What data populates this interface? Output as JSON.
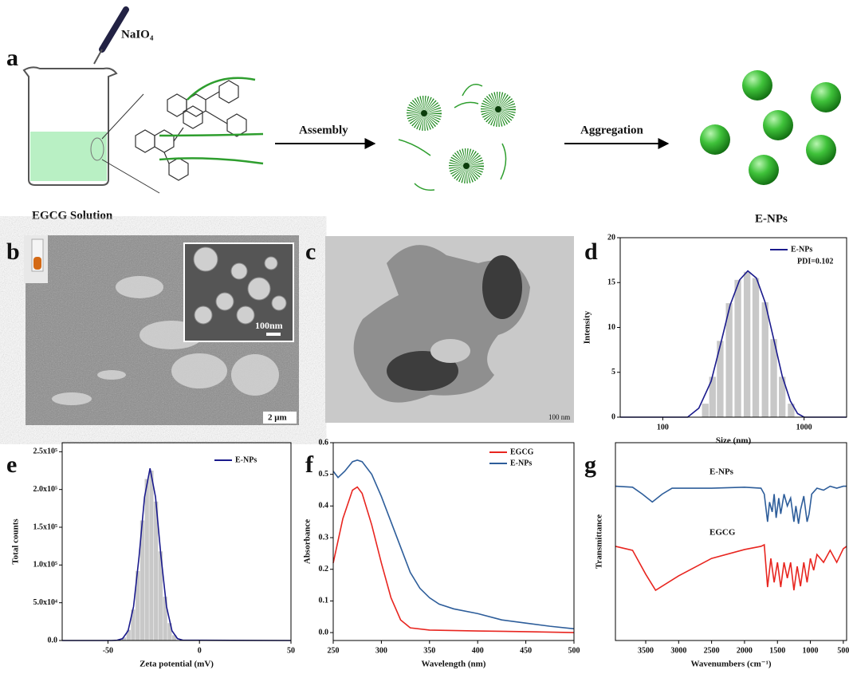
{
  "panel_labels": [
    "a",
    "b",
    "c",
    "d",
    "e",
    "f",
    "g"
  ],
  "scheme": {
    "reagent": "NaIO₄",
    "solution": "EGCG Solution",
    "step1": "Assembly",
    "step2": "Aggregation",
    "product": "E-NPs"
  },
  "micrographs": {
    "sem_inset_scale": "100nm",
    "sem_scale": "2 μm",
    "tem_scale": "100 nm"
  },
  "chart_data": [
    {
      "type": "bar",
      "xlabel": "Size (nm)",
      "ylabel": "Intensity",
      "xscale": "log",
      "xlim": [
        50,
        2000
      ],
      "xticks": [
        100,
        1000
      ],
      "ylim": [
        0,
        20
      ],
      "yticks": [
        0,
        5,
        10,
        15,
        20
      ],
      "legend": "upper right",
      "annotations": [
        "PDI=0.102"
      ],
      "bars": {
        "color": "#c8c8c8",
        "x": [
          200,
          225,
          255,
          295,
          340,
          395,
          455,
          530,
          610,
          700,
          810
        ],
        "values": [
          1.5,
          4.5,
          8.5,
          12.7,
          15.3,
          16.2,
          15.5,
          12.8,
          8.7,
          4.5,
          1.5
        ]
      },
      "series": [
        {
          "name": "E-NPs",
          "color": "#1a1a8c",
          "x": [
            50,
            150,
            180,
            220,
            260,
            300,
            350,
            400,
            460,
            530,
            610,
            700,
            800,
            900,
            1000,
            2000
          ],
          "values": [
            0,
            0,
            1,
            4,
            8.5,
            12.5,
            15.3,
            16.3,
            15.5,
            12.8,
            8.7,
            4.6,
            1.8,
            0.4,
            0,
            0
          ]
        }
      ]
    },
    {
      "type": "bar",
      "xlabel": "Zeta potential  (mV)",
      "ylabel": "Total counts",
      "xlim": [
        -75,
        50
      ],
      "xticks": [
        -50,
        0,
        50
      ],
      "ylim": [
        0,
        262000
      ],
      "yticks": [
        {
          "value": 0,
          "label": "0.0"
        },
        {
          "value": 50000,
          "label": "5.0x10⁴"
        },
        {
          "value": 100000,
          "label": "1.0x10⁵"
        },
        {
          "value": 150000,
          "label": "1.5x10⁵"
        },
        {
          "value": 200000,
          "label": "2.0x10⁵"
        },
        {
          "value": 250000,
          "label": "2.5x10⁵"
        }
      ],
      "legend": "upper right",
      "bars": {
        "color": "#c8c8c8",
        "x": [
          -43.75,
          -41.25,
          -38.75,
          -36.25,
          -33.75,
          -31.25,
          -28.75,
          -26.25,
          -23.75,
          -21.25,
          -18.75,
          -16.25,
          -13.75
        ],
        "values": [
          1000,
          4000,
          14000,
          41000,
          92000,
          159000,
          214000,
          225000,
          184000,
          118000,
          58000,
          23000,
          7000
        ]
      },
      "series": [
        {
          "name": "E-NPs",
          "color": "#1a1a8c",
          "x": [
            -75,
            -48,
            -45,
            -42,
            -39,
            -36,
            -33,
            -30,
            -27,
            -24,
            -21,
            -18,
            -15,
            -12,
            -9,
            50
          ],
          "values": [
            0,
            0,
            350,
            2500,
            12800,
            45000,
            111000,
            190000,
            228000,
            190000,
            111000,
            45000,
            12800,
            2500,
            350,
            0
          ]
        }
      ]
    },
    {
      "type": "line",
      "xlabel": "Wavelength (nm)",
      "ylabel": "Absorbance",
      "xlim": [
        250,
        500
      ],
      "xticks": [
        250,
        300,
        350,
        400,
        450,
        500
      ],
      "ylim": [
        -0.025,
        0.6
      ],
      "yticks": [
        {
          "value": 0,
          "label": "0.0"
        },
        0.1,
        0.2,
        0.3,
        0.4,
        0.5,
        0.6
      ],
      "legend": "upper right",
      "series": [
        {
          "name": "EGCG",
          "color": "#e8251f",
          "x": [
            250,
            260,
            270,
            275,
            280,
            290,
            300,
            310,
            320,
            330,
            350,
            400,
            450,
            500
          ],
          "values": [
            0.22,
            0.36,
            0.45,
            0.46,
            0.44,
            0.34,
            0.22,
            0.11,
            0.04,
            0.015,
            0.008,
            0.005,
            0.003,
            0.0
          ]
        },
        {
          "name": "E-NPs",
          "color": "#2d5d9a",
          "x": [
            250,
            255,
            262,
            270,
            275,
            280,
            290,
            300,
            310,
            320,
            330,
            340,
            350,
            360,
            375,
            400,
            425,
            450,
            475,
            500
          ],
          "values": [
            0.51,
            0.49,
            0.51,
            0.54,
            0.545,
            0.54,
            0.5,
            0.43,
            0.35,
            0.27,
            0.19,
            0.14,
            0.11,
            0.09,
            0.075,
            0.06,
            0.04,
            0.03,
            0.02,
            0.012
          ]
        }
      ]
    },
    {
      "type": "line",
      "xlabel": "Wavenumbers (cm⁻¹)",
      "ylabel": "Transmittance",
      "xlim": [
        3960,
        450
      ],
      "xticks": [
        3500,
        3000,
        2500,
        2000,
        1500,
        1000,
        500
      ],
      "ylim": [
        0,
        100
      ],
      "series": [
        {
          "name": "E-NPs",
          "color": "#2d5d9a",
          "x": [
            3960,
            3700,
            3550,
            3400,
            3250,
            3100,
            2500,
            2000,
            1750,
            1700,
            1650,
            1620,
            1580,
            1550,
            1520,
            1480,
            1450,
            1400,
            1350,
            1300,
            1250,
            1220,
            1180,
            1150,
            1100,
            1050,
            1020,
            980,
            900,
            800,
            700,
            600,
            500,
            450
          ],
          "values": [
            78,
            77.5,
            74,
            70,
            74,
            77,
            77,
            77.5,
            77,
            74,
            60,
            70,
            65,
            74,
            62,
            72,
            64,
            74,
            68,
            72,
            60,
            68,
            59,
            66,
            73,
            60,
            64,
            74,
            77,
            76,
            78,
            77,
            78,
            78
          ]
        },
        {
          "name": "EGCG",
          "color": "#e8251f",
          "x": [
            3960,
            3700,
            3500,
            3350,
            3000,
            2500,
            2000,
            1750,
            1700,
            1650,
            1600,
            1550,
            1500,
            1450,
            1400,
            1350,
            1300,
            1250,
            1200,
            1150,
            1100,
            1050,
            1000,
            950,
            900,
            800,
            700,
            600,
            500,
            450
          ],
          "values": [
            47.6,
            45.6,
            33.5,
            25.4,
            32.7,
            41.5,
            46,
            47.6,
            48.4,
            27,
            41.5,
            29.4,
            39.5,
            27,
            39.5,
            31.5,
            39.5,
            25.4,
            37.5,
            27.4,
            39.5,
            29.4,
            41.5,
            35.5,
            43.5,
            39.5,
            45.6,
            39.5,
            46.4,
            47.6
          ]
        }
      ]
    }
  ]
}
